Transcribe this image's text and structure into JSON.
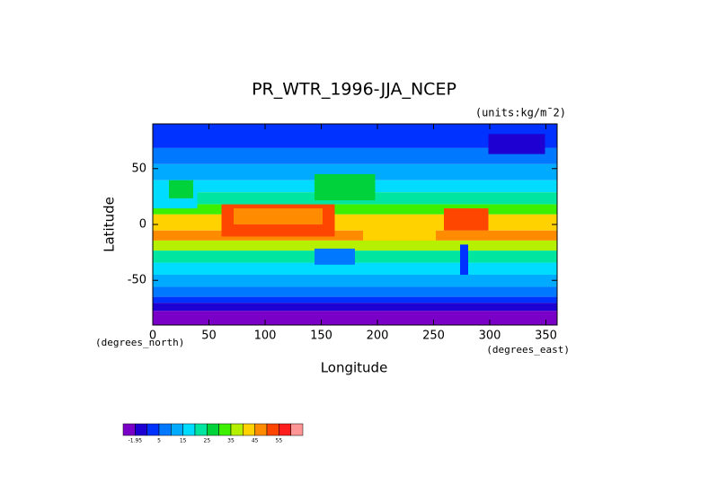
{
  "chart_data": {
    "type": "map",
    "title": "PR_WTR_1996-JJA_NCEP",
    "units": "(units:kg/m¯2)",
    "ylabel": "Latitude",
    "xlabel": "Longitude",
    "ylabel_units": "(degrees_north)",
    "xlabel_units": "(degrees_east)",
    "xlim": [
      0,
      360
    ],
    "xticks": [
      0,
      50,
      100,
      150,
      200,
      250,
      300,
      350
    ],
    "ylim": [
      -90,
      90
    ],
    "yticks": [
      -50,
      0,
      50
    ],
    "colorbar": {
      "colors": [
        "#7a00c8",
        "#1e00d2",
        "#0032ff",
        "#0078ff",
        "#00aaff",
        "#00dcff",
        "#00e6a0",
        "#00d23c",
        "#3cf000",
        "#b4f000",
        "#ffd200",
        "#ff8c00",
        "#ff4600",
        "#ff1e1e",
        "#ff9696"
      ],
      "ticks": [
        -1.95,
        5,
        15,
        25,
        35,
        45,
        55
      ]
    }
  }
}
